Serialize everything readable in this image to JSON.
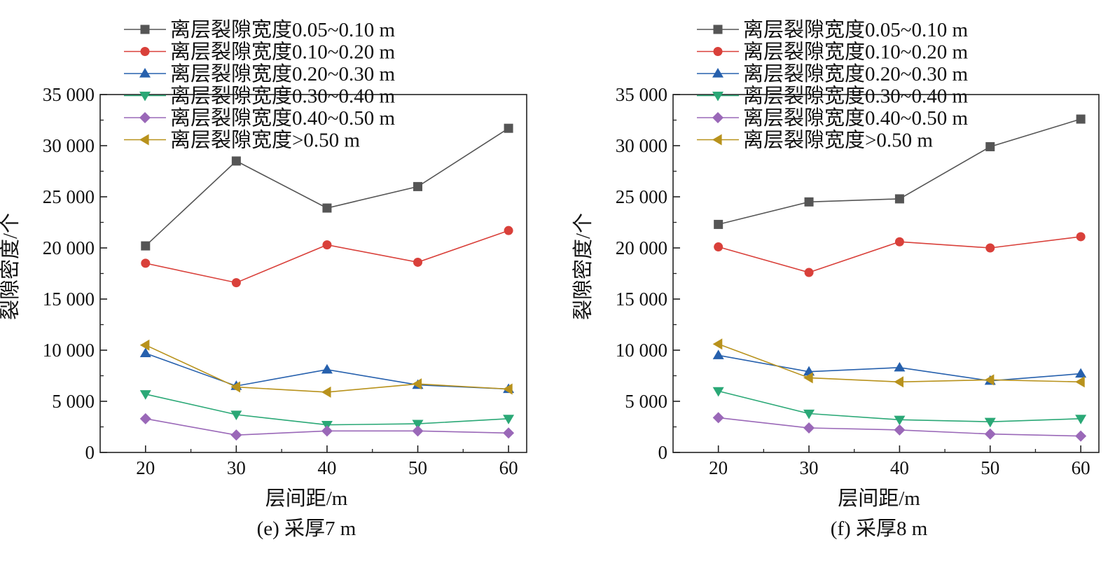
{
  "chart_data": [
    {
      "type": "line",
      "caption": "(e) 采厚7 m",
      "xlabel": "层间距/m",
      "ylabel": "裂隙密度/个",
      "x": [
        20,
        30,
        40,
        50,
        60
      ],
      "xlim": [
        15,
        62
      ],
      "ylim": [
        0,
        35000
      ],
      "xticks": [
        "20",
        "30",
        "40",
        "50",
        "60"
      ],
      "yticks": [
        "0",
        "5 000",
        "10 000",
        "15 000",
        "20 000",
        "25 000",
        "30 000",
        "35 000"
      ],
      "legend_position": "top-left",
      "series": [
        {
          "name": "离层裂隙宽度0.05~0.10 m",
          "color": "#555555",
          "marker": "square",
          "values": [
            20200,
            28500,
            23900,
            26000,
            31700
          ]
        },
        {
          "name": "离层裂隙宽度0.10~0.20 m",
          "color": "#d9403a",
          "marker": "circle",
          "values": [
            18500,
            16600,
            20300,
            18600,
            21700
          ]
        },
        {
          "name": "离层裂隙宽度0.20~0.30 m",
          "color": "#2660ad",
          "marker": "triangle-up",
          "values": [
            9700,
            6500,
            8100,
            6600,
            6200
          ]
        },
        {
          "name": "离层裂隙宽度0.30~0.40 m",
          "color": "#2aa876",
          "marker": "triangle-down",
          "values": [
            5700,
            3700,
            2700,
            2800,
            3300
          ]
        },
        {
          "name": "离层裂隙宽度0.40~0.50 m",
          "color": "#9a68b8",
          "marker": "diamond",
          "values": [
            3300,
            1700,
            2100,
            2100,
            1900
          ]
        },
        {
          "name": "离层裂隙宽度>0.50 m",
          "color": "#b8921c",
          "marker": "triangle-left",
          "values": [
            10500,
            6400,
            5900,
            6700,
            6200
          ]
        }
      ]
    },
    {
      "type": "line",
      "caption": "(f) 采厚8 m",
      "xlabel": "层间距/m",
      "ylabel": "裂隙密度/个",
      "x": [
        20,
        30,
        40,
        50,
        60
      ],
      "xlim": [
        15,
        62
      ],
      "ylim": [
        0,
        35000
      ],
      "xticks": [
        "20",
        "30",
        "40",
        "50",
        "60"
      ],
      "yticks": [
        "0",
        "5 000",
        "10 000",
        "15 000",
        "20 000",
        "25 000",
        "30 000",
        "35 000"
      ],
      "legend_position": "top-left",
      "series": [
        {
          "name": "离层裂隙宽度0.05~0.10 m",
          "color": "#555555",
          "marker": "square",
          "values": [
            22300,
            24500,
            24800,
            29900,
            32600
          ]
        },
        {
          "name": "离层裂隙宽度0.10~0.20 m",
          "color": "#d9403a",
          "marker": "circle",
          "values": [
            20100,
            17600,
            20600,
            20000,
            21100
          ]
        },
        {
          "name": "离层裂隙宽度0.20~0.30 m",
          "color": "#2660ad",
          "marker": "triangle-up",
          "values": [
            9500,
            7900,
            8300,
            7000,
            7700
          ]
        },
        {
          "name": "离层裂隙宽度0.30~0.40 m",
          "color": "#2aa876",
          "marker": "triangle-down",
          "values": [
            6000,
            3800,
            3200,
            3000,
            3300
          ]
        },
        {
          "name": "离层裂隙宽度0.40~0.50 m",
          "color": "#9a68b8",
          "marker": "diamond",
          "values": [
            3400,
            2400,
            2200,
            1800,
            1600
          ]
        },
        {
          "name": "离层裂隙宽度>0.50 m",
          "color": "#b8921c",
          "marker": "triangle-left",
          "values": [
            10600,
            7300,
            6900,
            7100,
            6900
          ]
        }
      ]
    }
  ]
}
